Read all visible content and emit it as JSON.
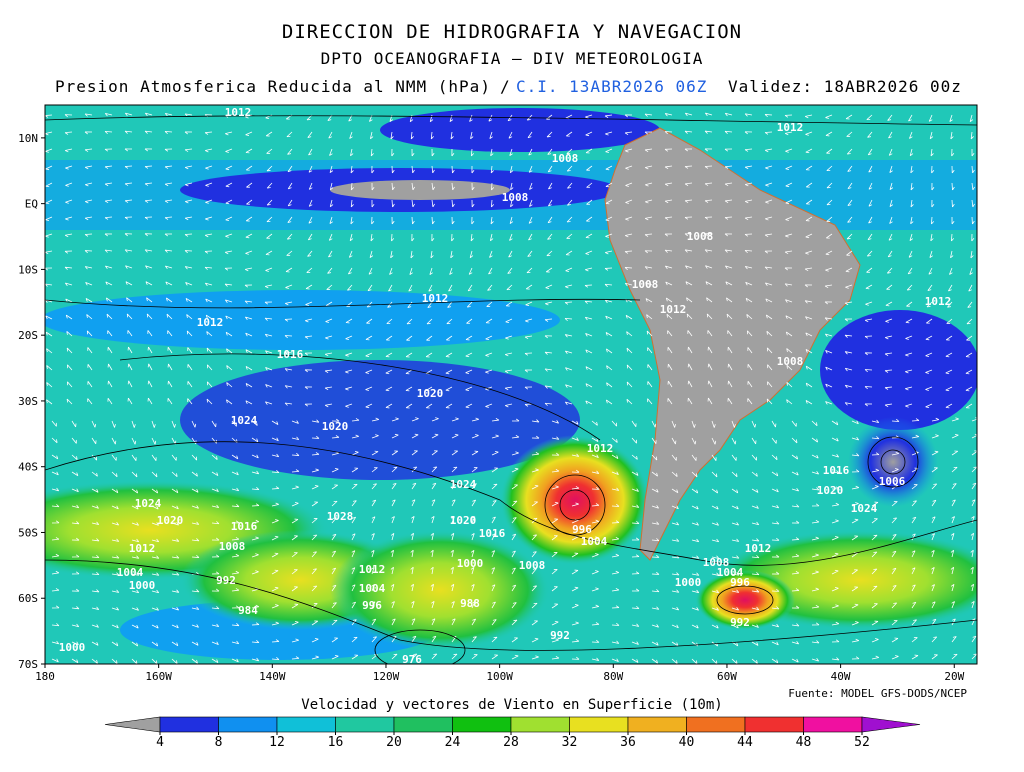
{
  "header": {
    "title": "DIRECCION DE HIDROGRAFIA Y NAVEGACION",
    "subtitle": "DPTO OCEANOGRAFIA – DIV METEOROLOGIA",
    "field": "Presion Atmosferica Reducida al NMM (hPa)",
    "separator": "/",
    "init": "C.I. 13ABR2026 06Z",
    "valid": "Validez: 18ABR2026 00z"
  },
  "map": {
    "lon_range": [
      -180,
      -16
    ],
    "lat_range": [
      -70,
      15
    ],
    "lat_ticks": [
      {
        "value": 10,
        "label": "10N"
      },
      {
        "value": 0,
        "label": "EQ"
      },
      {
        "value": -10,
        "label": "10S"
      },
      {
        "value": -20,
        "label": "20S"
      },
      {
        "value": -30,
        "label": "30S"
      },
      {
        "value": -40,
        "label": "40S"
      },
      {
        "value": -50,
        "label": "50S"
      },
      {
        "value": -60,
        "label": "60S"
      },
      {
        "value": -70,
        "label": "70S"
      }
    ],
    "lon_ticks": [
      {
        "value": -180,
        "label": "180"
      },
      {
        "value": -160,
        "label": "160W"
      },
      {
        "value": -140,
        "label": "140W"
      },
      {
        "value": -120,
        "label": "120W"
      },
      {
        "value": -100,
        "label": "100W"
      },
      {
        "value": -80,
        "label": "80W"
      },
      {
        "value": -60,
        "label": "60W"
      },
      {
        "value": -40,
        "label": "40W"
      },
      {
        "value": -20,
        "label": "20W"
      }
    ],
    "isobar_labels": [
      1012,
      1012,
      1008,
      1008,
      1008,
      1012,
      1012,
      1012,
      1008,
      1012,
      1016,
      1008,
      1020,
      1024,
      1020,
      1012,
      1016,
      1006,
      1024,
      1020,
      1024,
      1024,
      1020,
      1028,
      1016,
      1020,
      1016,
      996,
      1004,
      1012,
      1008,
      1012,
      1008,
      1000,
      1008,
      1012,
      1004,
      1004,
      992,
      1000,
      1000,
      996,
      1004,
      996,
      988,
      984,
      992,
      992,
      1000,
      976
    ]
  },
  "colorbar": {
    "title": "Velocidad y vectores de Viento en Superficie (10m)",
    "ticks": [
      4,
      8,
      12,
      16,
      20,
      24,
      28,
      32,
      36,
      40,
      44,
      48,
      52
    ],
    "colors": [
      "#a0a0a0",
      "#2030e0",
      "#1090f0",
      "#10c0d8",
      "#20c8a0",
      "#20c060",
      "#10c010",
      "#a0e030",
      "#e8e020",
      "#f0b020",
      "#f07020",
      "#f03030",
      "#f010a0",
      "#a010d0"
    ]
  },
  "source": "Fuente: MODEL GFS-DODS/NCEP"
}
